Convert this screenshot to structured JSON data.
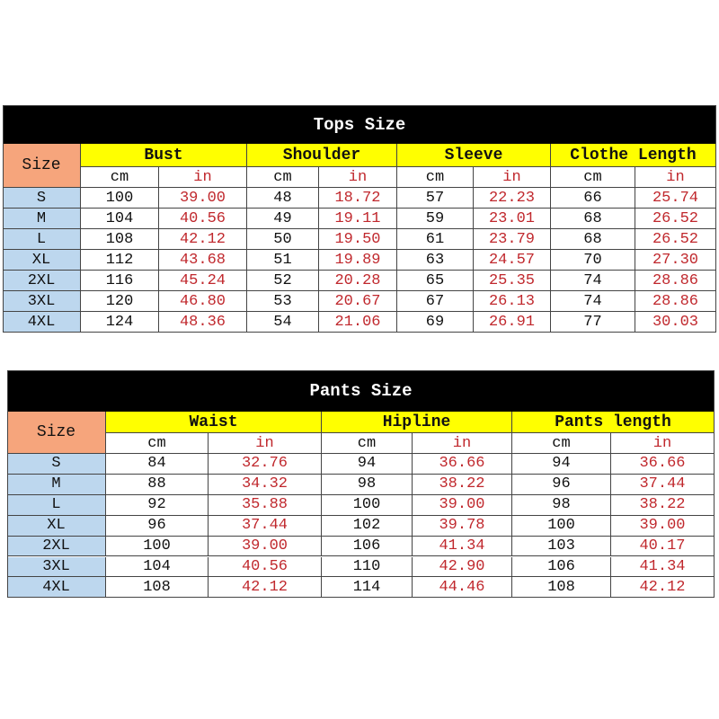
{
  "tops": {
    "title": "Tops Size",
    "size_label": "Size",
    "groups": [
      "Bust",
      "Shoulder",
      "Sleeve",
      "Clothe Length"
    ],
    "units": [
      "cm",
      "in",
      "cm",
      "in",
      "cm",
      "in",
      "cm",
      "in"
    ],
    "rows": [
      [
        "S",
        "100",
        "39.00",
        "48",
        "18.72",
        "57",
        "22.23",
        "66",
        "25.74"
      ],
      [
        "M",
        "104",
        "40.56",
        "49",
        "19.11",
        "59",
        "23.01",
        "68",
        "26.52"
      ],
      [
        "L",
        "108",
        "42.12",
        "50",
        "19.50",
        "61",
        "23.79",
        "68",
        "26.52"
      ],
      [
        "XL",
        "112",
        "43.68",
        "51",
        "19.89",
        "63",
        "24.57",
        "70",
        "27.30"
      ],
      [
        "2XL",
        "116",
        "45.24",
        "52",
        "20.28",
        "65",
        "25.35",
        "74",
        "28.86"
      ],
      [
        "3XL",
        "120",
        "46.80",
        "53",
        "20.67",
        "67",
        "26.13",
        "74",
        "28.86"
      ],
      [
        "4XL",
        "124",
        "48.36",
        "54",
        "21.06",
        "69",
        "26.91",
        "77",
        "30.03"
      ]
    ]
  },
  "pants": {
    "title": "Pants Size",
    "size_label": "Size",
    "groups": [
      "Waist",
      "Hipline",
      "Pants length"
    ],
    "units": [
      "cm",
      "in",
      "cm",
      "in",
      "cm",
      "in"
    ],
    "rows": [
      [
        "S",
        "84",
        "32.76",
        "94",
        "36.66",
        "94",
        "36.66"
      ],
      [
        "M",
        "88",
        "34.32",
        "98",
        "38.22",
        "96",
        "37.44"
      ],
      [
        "L",
        "92",
        "35.88",
        "100",
        "39.00",
        "98",
        "38.22"
      ],
      [
        "XL",
        "96",
        "37.44",
        "102",
        "39.78",
        "100",
        "39.00"
      ],
      [
        "2XL",
        "100",
        "39.00",
        "106",
        "41.34",
        "103",
        "40.17"
      ],
      [
        "3XL",
        "104",
        "40.56",
        "110",
        "42.90",
        "106",
        "41.34"
      ],
      [
        "4XL",
        "108",
        "42.12",
        "114",
        "44.46",
        "108",
        "42.12"
      ]
    ]
  }
}
